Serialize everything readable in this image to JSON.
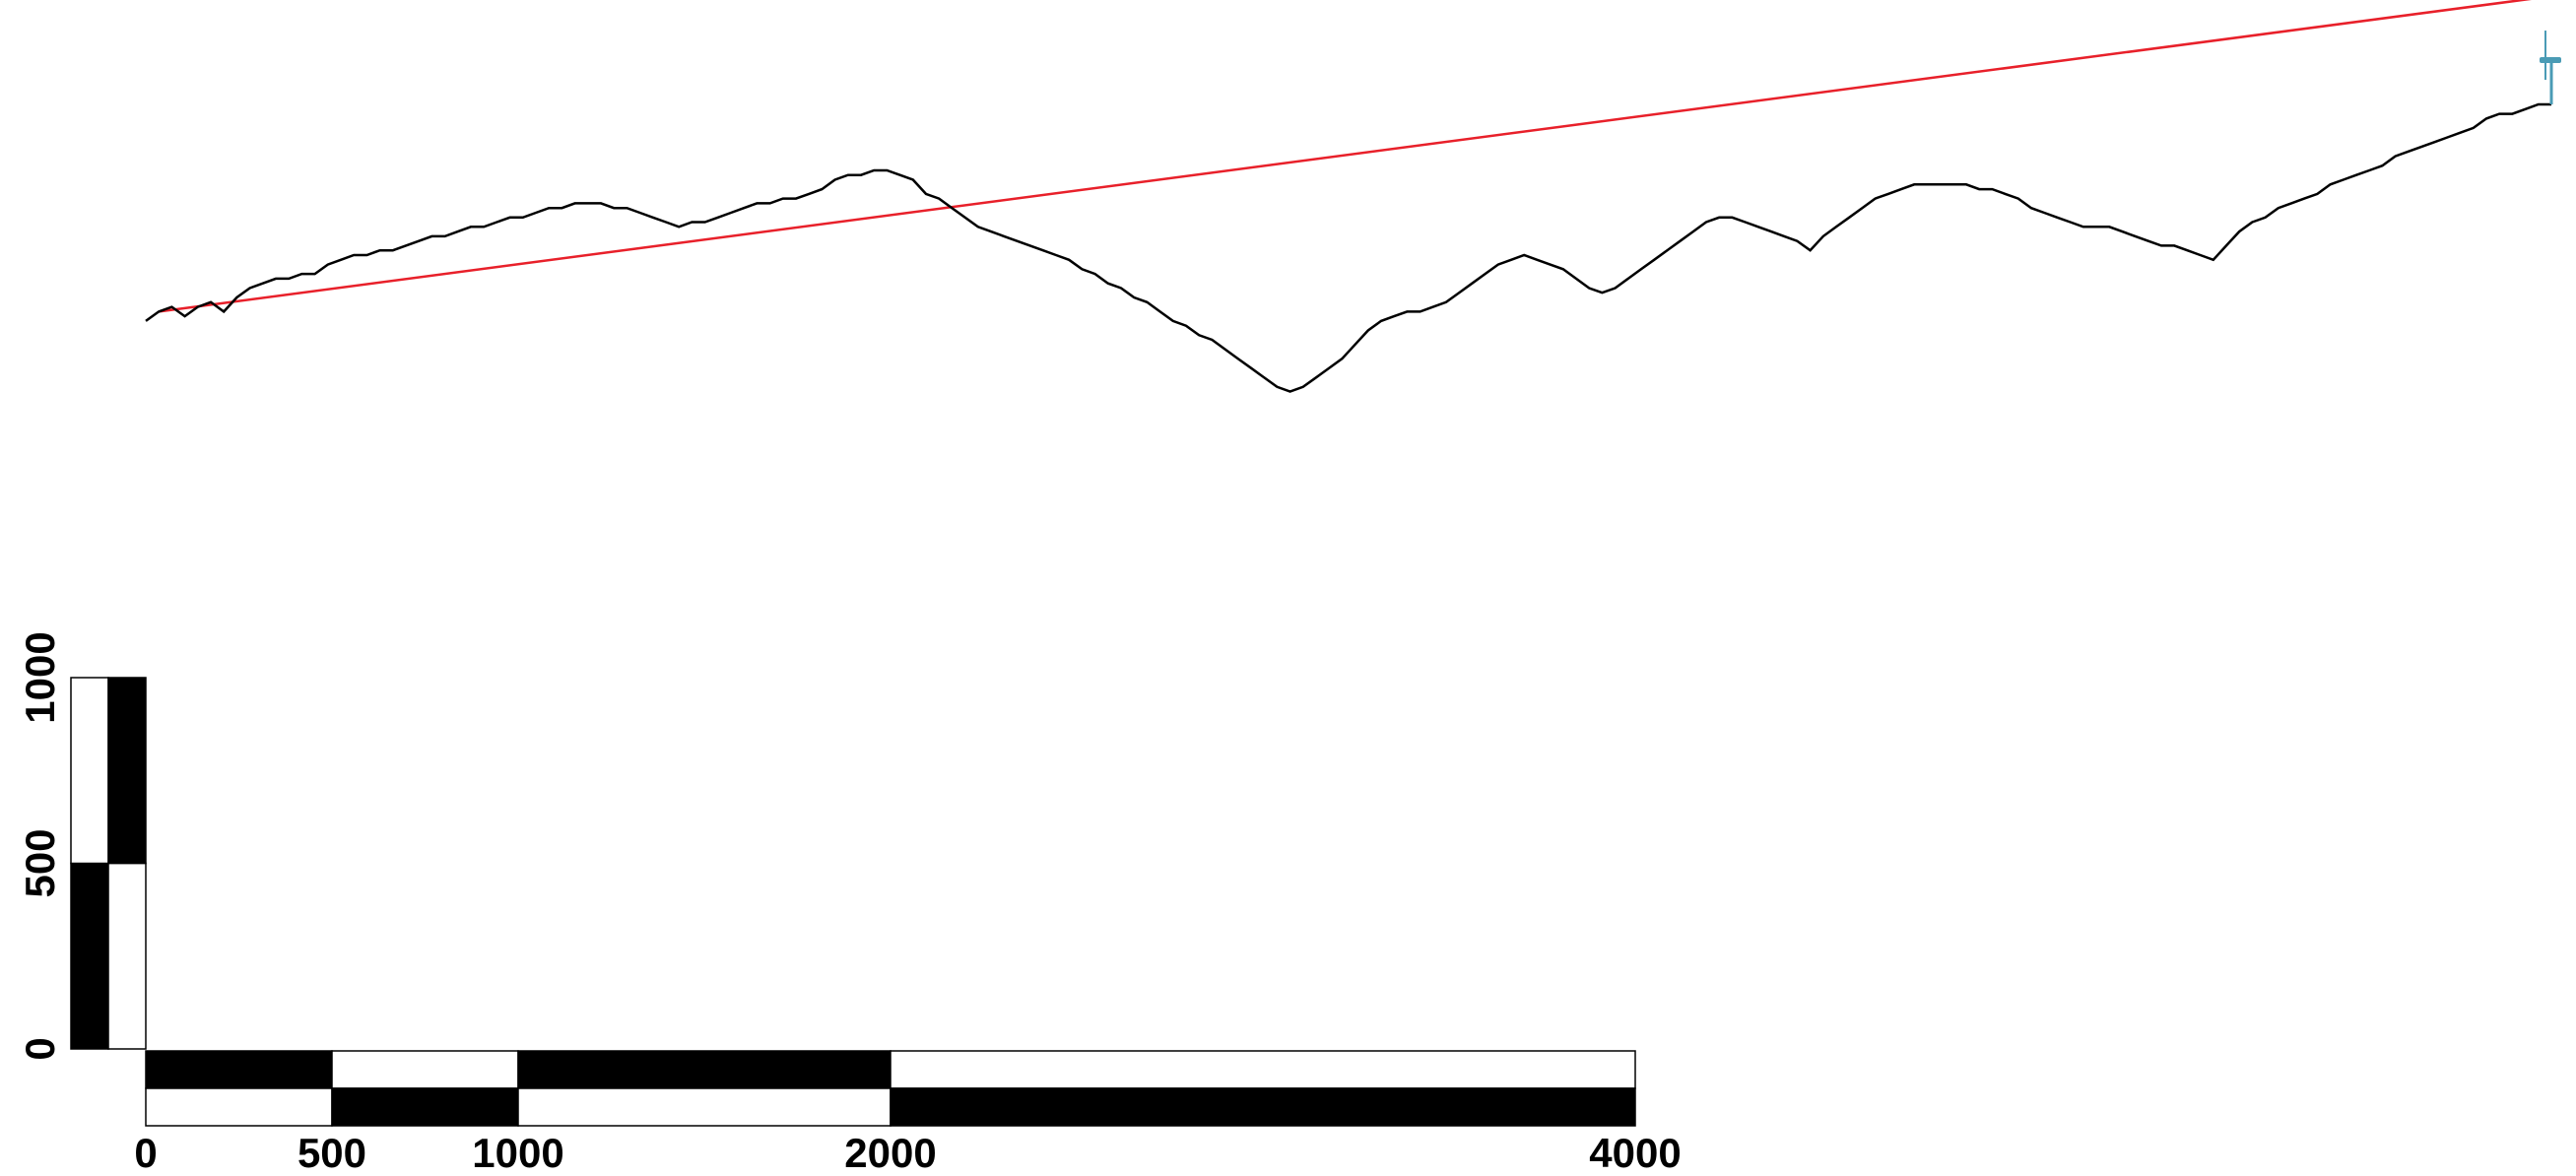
{
  "colors": {
    "sightline": "#e8202a",
    "terrain": "#000000",
    "turbine": "#4a9bb5",
    "scale_dark": "#000000",
    "scale_light": "#ffffff"
  },
  "icons": {
    "turbine": "wind-turbine-icon"
  },
  "profile": {
    "points": [
      [
        0.0,
        0.276
      ],
      [
        0.5,
        0.278
      ],
      [
        1.0,
        0.279
      ],
      [
        1.5,
        0.277
      ],
      [
        2.0,
        0.279
      ],
      [
        2.5,
        0.28
      ],
      [
        3.0,
        0.278
      ],
      [
        3.5,
        0.281
      ],
      [
        4.0,
        0.283
      ],
      [
        4.5,
        0.284
      ],
      [
        5.0,
        0.285
      ],
      [
        5.5,
        0.285
      ],
      [
        6.0,
        0.286
      ],
      [
        6.5,
        0.286
      ],
      [
        7.0,
        0.288
      ],
      [
        7.5,
        0.289
      ],
      [
        8.0,
        0.29
      ],
      [
        8.5,
        0.29
      ],
      [
        9.0,
        0.291
      ],
      [
        9.5,
        0.291
      ],
      [
        10.0,
        0.292
      ],
      [
        10.5,
        0.293
      ],
      [
        11.0,
        0.294
      ],
      [
        11.5,
        0.294
      ],
      [
        12.0,
        0.295
      ],
      [
        12.5,
        0.296
      ],
      [
        13.0,
        0.296
      ],
      [
        13.5,
        0.297
      ],
      [
        14.0,
        0.298
      ],
      [
        14.5,
        0.298
      ],
      [
        15.0,
        0.299
      ],
      [
        15.5,
        0.3
      ],
      [
        16.0,
        0.3
      ],
      [
        16.5,
        0.301
      ],
      [
        17.0,
        0.301
      ],
      [
        17.5,
        0.301
      ],
      [
        18.0,
        0.3
      ],
      [
        18.5,
        0.3
      ],
      [
        19.0,
        0.299
      ],
      [
        19.5,
        0.298
      ],
      [
        20.0,
        0.297
      ],
      [
        20.5,
        0.296
      ],
      [
        21.0,
        0.297
      ],
      [
        21.5,
        0.297
      ],
      [
        22.0,
        0.298
      ],
      [
        22.5,
        0.299
      ],
      [
        23.0,
        0.3
      ],
      [
        23.5,
        0.301
      ],
      [
        24.0,
        0.301
      ],
      [
        24.5,
        0.302
      ],
      [
        25.0,
        0.302
      ],
      [
        25.5,
        0.303
      ],
      [
        26.0,
        0.304
      ],
      [
        26.5,
        0.306
      ],
      [
        27.0,
        0.307
      ],
      [
        27.5,
        0.307
      ],
      [
        28.0,
        0.308
      ],
      [
        28.5,
        0.308
      ],
      [
        29.0,
        0.307
      ],
      [
        29.5,
        0.306
      ],
      [
        30.0,
        0.303
      ],
      [
        30.5,
        0.302
      ],
      [
        31.0,
        0.3
      ],
      [
        31.5,
        0.298
      ],
      [
        32.0,
        0.296
      ],
      [
        32.5,
        0.295
      ],
      [
        33.0,
        0.294
      ],
      [
        33.5,
        0.293
      ],
      [
        34.0,
        0.292
      ],
      [
        34.5,
        0.291
      ],
      [
        35.0,
        0.29
      ],
      [
        35.5,
        0.289
      ],
      [
        36.0,
        0.287
      ],
      [
        36.5,
        0.286
      ],
      [
        37.0,
        0.284
      ],
      [
        37.5,
        0.283
      ],
      [
        38.0,
        0.281
      ],
      [
        38.5,
        0.28
      ],
      [
        39.0,
        0.278
      ],
      [
        39.5,
        0.276
      ],
      [
        40.0,
        0.275
      ],
      [
        40.5,
        0.273
      ],
      [
        41.0,
        0.272
      ],
      [
        41.5,
        0.27
      ],
      [
        42.0,
        0.268
      ],
      [
        42.5,
        0.266
      ],
      [
        43.0,
        0.264
      ],
      [
        43.5,
        0.262
      ],
      [
        44.0,
        0.261
      ],
      [
        44.5,
        0.262
      ],
      [
        45.0,
        0.264
      ],
      [
        45.5,
        0.266
      ],
      [
        46.0,
        0.268
      ],
      [
        46.5,
        0.271
      ],
      [
        47.0,
        0.274
      ],
      [
        47.5,
        0.276
      ],
      [
        48.0,
        0.277
      ],
      [
        48.5,
        0.278
      ],
      [
        49.0,
        0.278
      ],
      [
        49.5,
        0.279
      ],
      [
        50.0,
        0.28
      ],
      [
        50.5,
        0.282
      ],
      [
        51.0,
        0.284
      ],
      [
        51.5,
        0.286
      ],
      [
        52.0,
        0.288
      ],
      [
        52.5,
        0.289
      ],
      [
        53.0,
        0.29
      ],
      [
        53.5,
        0.289
      ],
      [
        54.0,
        0.288
      ],
      [
        54.5,
        0.287
      ],
      [
        55.0,
        0.285
      ],
      [
        55.5,
        0.283
      ],
      [
        56.0,
        0.282
      ],
      [
        56.5,
        0.283
      ],
      [
        57.0,
        0.285
      ],
      [
        57.5,
        0.287
      ],
      [
        58.0,
        0.289
      ],
      [
        58.5,
        0.291
      ],
      [
        59.0,
        0.293
      ],
      [
        59.5,
        0.295
      ],
      [
        60.0,
        0.297
      ],
      [
        60.5,
        0.298
      ],
      [
        61.0,
        0.298
      ],
      [
        61.5,
        0.297
      ],
      [
        62.0,
        0.296
      ],
      [
        62.5,
        0.295
      ],
      [
        63.0,
        0.294
      ],
      [
        63.5,
        0.293
      ],
      [
        64.0,
        0.291
      ],
      [
        64.5,
        0.294
      ],
      [
        65.0,
        0.296
      ],
      [
        65.5,
        0.298
      ],
      [
        66.0,
        0.3
      ],
      [
        66.5,
        0.302
      ],
      [
        67.0,
        0.303
      ],
      [
        67.5,
        0.304
      ],
      [
        68.0,
        0.305
      ],
      [
        68.5,
        0.305
      ],
      [
        69.0,
        0.305
      ],
      [
        69.5,
        0.305
      ],
      [
        70.0,
        0.305
      ],
      [
        70.5,
        0.304
      ],
      [
        71.0,
        0.304
      ],
      [
        71.5,
        0.303
      ],
      [
        72.0,
        0.302
      ],
      [
        72.5,
        0.3
      ],
      [
        73.0,
        0.299
      ],
      [
        73.5,
        0.298
      ],
      [
        74.0,
        0.297
      ],
      [
        74.5,
        0.296
      ],
      [
        75.0,
        0.296
      ],
      [
        75.5,
        0.296
      ],
      [
        76.0,
        0.295
      ],
      [
        76.5,
        0.294
      ],
      [
        77.0,
        0.293
      ],
      [
        77.5,
        0.292
      ],
      [
        78.0,
        0.292
      ],
      [
        78.5,
        0.291
      ],
      [
        79.0,
        0.29
      ],
      [
        79.5,
        0.289
      ],
      [
        80.0,
        0.292
      ],
      [
        80.5,
        0.295
      ],
      [
        81.0,
        0.297
      ],
      [
        81.5,
        0.298
      ],
      [
        82.0,
        0.3
      ],
      [
        82.5,
        0.301
      ],
      [
        83.0,
        0.302
      ],
      [
        83.5,
        0.303
      ],
      [
        84.0,
        0.305
      ],
      [
        84.5,
        0.306
      ],
      [
        85.0,
        0.307
      ],
      [
        85.5,
        0.308
      ],
      [
        86.0,
        0.309
      ],
      [
        86.5,
        0.311
      ],
      [
        87.0,
        0.312
      ],
      [
        87.5,
        0.313
      ],
      [
        88.0,
        0.314
      ],
      [
        88.5,
        0.315
      ],
      [
        89.0,
        0.316
      ],
      [
        89.5,
        0.317
      ],
      [
        90.0,
        0.319
      ],
      [
        90.5,
        0.32
      ],
      [
        91.0,
        0.32
      ],
      [
        91.5,
        0.321
      ],
      [
        92.0,
        0.322
      ],
      [
        92.5,
        0.322
      ]
    ],
    "y_range": [
      0.24,
      0.34
    ]
  },
  "sightline": {
    "from": [
      0.5,
      0.278
    ],
    "to": [
      92.5,
      0.345
    ]
  },
  "turbine": {
    "at": [
      92.5,
      0.322
    ]
  },
  "horizontal_scale": {
    "ticks": [
      {
        "value": 0,
        "label": "0"
      },
      {
        "value": 500,
        "label": "500"
      },
      {
        "value": 1000,
        "label": "1000"
      },
      {
        "value": 2000,
        "label": "2000"
      },
      {
        "value": 4000,
        "label": "4000"
      }
    ],
    "max": 4000
  },
  "vertical_scale": {
    "ticks": [
      {
        "value": 0,
        "label": "0"
      },
      {
        "value": 500,
        "label": "500"
      },
      {
        "value": 1000,
        "label": "1000"
      }
    ],
    "max": 1000
  }
}
